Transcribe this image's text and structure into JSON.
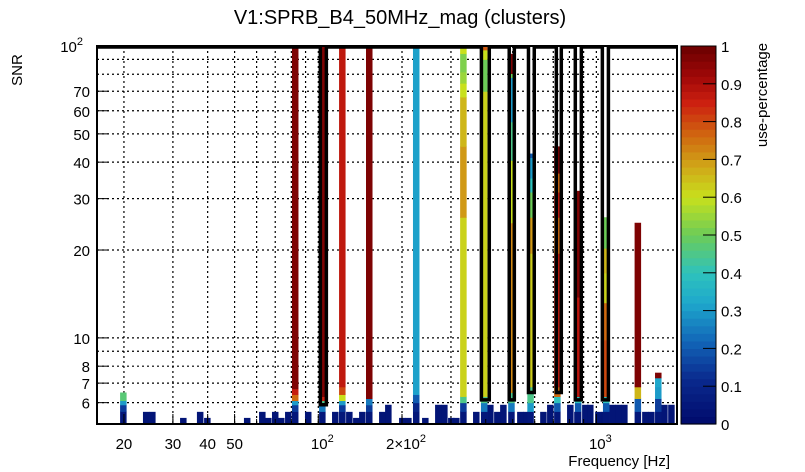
{
  "chart_data": {
    "type": "heatmap",
    "title": "V1:SPRB_B4_50MHz_mag (clusters)",
    "xlabel": "Frequency [Hz]",
    "ylabel": "SNR",
    "zlabel": "use-percentage",
    "xscale": "log",
    "yscale": "log",
    "xlim": [
      16.0,
      1950
    ],
    "ylim": [
      5.07,
      100
    ],
    "zlim": [
      0,
      1
    ],
    "grid": true,
    "bin_width_decades": 0.0234,
    "x_gridlines": [
      20,
      30,
      40,
      50,
      60,
      70,
      80,
      90,
      100,
      200,
      300,
      400,
      500,
      600,
      700,
      800,
      900,
      1000
    ],
    "y_gridlines": [
      6,
      7,
      8,
      9,
      10,
      20,
      30,
      40,
      50,
      60,
      70,
      80,
      90
    ],
    "x_ticks": [
      {
        "value": 20,
        "base": "20",
        "exp": ""
      },
      {
        "value": 30,
        "base": "30",
        "exp": ""
      },
      {
        "value": 40,
        "base": "40",
        "exp": ""
      },
      {
        "value": 50,
        "base": "50",
        "exp": ""
      },
      {
        "value": 100,
        "base": "10",
        "exp": "2"
      },
      {
        "value": 200,
        "base": "2×10",
        "exp": "2"
      },
      {
        "value": 1000,
        "base": "10",
        "exp": "3"
      }
    ],
    "y_ticks": [
      {
        "value": 100,
        "base": "10",
        "exp": "2"
      },
      {
        "value": 70,
        "base": "70",
        "exp": ""
      },
      {
        "value": 60,
        "base": "60",
        "exp": ""
      },
      {
        "value": 50,
        "base": "50",
        "exp": ""
      },
      {
        "value": 40,
        "base": "40",
        "exp": ""
      },
      {
        "value": 30,
        "base": "30",
        "exp": ""
      },
      {
        "value": 20,
        "base": "20",
        "exp": ""
      },
      {
        "value": 10,
        "base": "10",
        "exp": ""
      },
      {
        "value": 8,
        "base": "8",
        "exp": ""
      },
      {
        "value": 7,
        "base": "7",
        "exp": ""
      },
      {
        "value": 6,
        "base": "6",
        "exp": ""
      }
    ],
    "colorbar_ticks": [
      "0",
      "0.1",
      "0.2",
      "0.3",
      "0.4",
      "0.5",
      "0.6",
      "0.7",
      "0.8",
      "0.9",
      "1"
    ],
    "colormap": [
      [
        0.0,
        "#000a6b"
      ],
      [
        0.12,
        "#0a2a8e"
      ],
      [
        0.22,
        "#1266b8"
      ],
      [
        0.32,
        "#1ea8cc"
      ],
      [
        0.4,
        "#2ec2bc"
      ],
      [
        0.5,
        "#6ccc58"
      ],
      [
        0.6,
        "#c8e01c"
      ],
      [
        0.68,
        "#d0a818"
      ],
      [
        0.76,
        "#d06a10"
      ],
      [
        0.85,
        "#cc2010"
      ],
      [
        0.92,
        "#a00808"
      ],
      [
        1.0,
        "#6a0000"
      ]
    ],
    "columns": [
      {
        "f": 19.9,
        "segments": [
          [
            5.6,
            0.05
          ],
          [
            5.9,
            0.15
          ],
          [
            6.1,
            0.3
          ],
          [
            6.5,
            0.47
          ]
        ]
      },
      {
        "f": 82.6,
        "segments": [
          [
            5.6,
            0.05
          ],
          [
            5.9,
            0.15
          ],
          [
            6.1,
            0.3
          ],
          [
            6.4,
            0.76
          ],
          [
            6.7,
            0.86
          ],
          [
            100,
            0.97
          ]
        ]
      },
      {
        "f": 103.4,
        "segments": [
          [
            5.6,
            0.05
          ],
          [
            5.9,
            0.25
          ],
          [
            6.1,
            0.45
          ],
          [
            6.3,
            0.85
          ],
          [
            100,
            0.97
          ]
        ]
      },
      {
        "f": 122,
        "segments": [
          [
            5.6,
            0.05
          ],
          [
            5.9,
            0.15
          ],
          [
            6.1,
            0.3
          ],
          [
            6.4,
            0.6
          ],
          [
            6.8,
            0.8
          ],
          [
            100,
            0.87
          ]
        ]
      },
      {
        "f": 152.5,
        "segments": [
          [
            5.6,
            0.05
          ],
          [
            5.9,
            0.15
          ],
          [
            6.2,
            0.25
          ],
          [
            100,
            0.97
          ]
        ]
      },
      {
        "f": 225,
        "segments": [
          [
            5.6,
            0.05
          ],
          [
            6.0,
            0.1
          ],
          [
            6.4,
            0.2
          ],
          [
            100,
            0.31
          ]
        ]
      },
      {
        "f": 332.5,
        "segments": [
          [
            5.6,
            0.05
          ],
          [
            6.0,
            0.15
          ],
          [
            6.3,
            0.45
          ],
          [
            25.9,
            0.62
          ],
          [
            45.3,
            0.7
          ],
          [
            66.9,
            0.66
          ],
          [
            74.6,
            0.6
          ],
          [
            81.5,
            0.55
          ],
          [
            94.3,
            0.52
          ],
          [
            100,
            0.6
          ]
        ]
      },
      {
        "f": 395,
        "segments": [
          [
            5.6,
            0.05
          ],
          [
            6.0,
            0.25
          ],
          [
            6.3,
            0.45
          ],
          [
            70,
            0.62
          ],
          [
            90,
            0.5
          ],
          [
            97,
            0.6
          ],
          [
            100,
            0.78
          ]
        ]
      },
      {
        "f": 495,
        "segments": [
          [
            5.6,
            0.05
          ],
          [
            6.0,
            0.25
          ],
          [
            6.5,
            0.45
          ],
          [
            24.8,
            0.72
          ],
          [
            40.6,
            0.6
          ],
          [
            55,
            0.45
          ],
          [
            78,
            0.3
          ],
          [
            80.5,
            0.5
          ],
          [
            94,
            0.97
          ]
        ]
      },
      {
        "f": 580,
        "segments": [
          [
            5.6,
            0.05
          ],
          [
            6.0,
            0.3
          ],
          [
            6.8,
            0.45
          ],
          [
            19.5,
            0.63
          ],
          [
            25.9,
            0.7
          ],
          [
            31.6,
            0.5
          ],
          [
            35.3,
            0.4
          ],
          [
            41.5,
            0.3
          ],
          [
            42.8,
            0.2
          ]
        ]
      },
      {
        "f": 724,
        "segments": [
          [
            5.6,
            0.05
          ],
          [
            6.0,
            0.2
          ],
          [
            6.3,
            0.4
          ],
          [
            6.8,
            0.76
          ],
          [
            19.5,
            0.86
          ],
          [
            25.9,
            0.76
          ],
          [
            31.6,
            0.86
          ],
          [
            36.7,
            0.76
          ],
          [
            45.3,
            0.97
          ]
        ]
      },
      {
        "f": 860,
        "segments": [
          [
            5.6,
            0.05
          ],
          [
            6.0,
            0.2
          ],
          [
            6.3,
            0.4
          ],
          [
            13.8,
            0.88
          ],
          [
            31.9,
            0.97
          ]
        ]
      },
      {
        "f": 1085,
        "segments": [
          [
            5.6,
            0.05
          ],
          [
            6.0,
            0.2
          ],
          [
            6.3,
            0.4
          ],
          [
            9.85,
            0.8
          ],
          [
            13.2,
            0.76
          ],
          [
            16.7,
            0.62
          ],
          [
            20.3,
            0.66
          ],
          [
            25.9,
            0.5
          ]
        ]
      },
      {
        "f": 1410,
        "segments": [
          [
            5.6,
            0.05
          ],
          [
            6.2,
            0.2
          ],
          [
            6.8,
            0.66
          ],
          [
            24.8,
            0.97
          ]
        ]
      },
      {
        "f": 1670,
        "segments": [
          [
            5.6,
            0.05
          ],
          [
            6.2,
            0.15
          ],
          [
            6.8,
            0.3
          ],
          [
            7.3,
            0.32
          ],
          [
            7.6,
            0.97
          ]
        ]
      }
    ],
    "base_bins": [
      [
        24.05,
        5.58
      ],
      [
        25.3,
        5.58
      ],
      [
        32.7,
        5.32
      ],
      [
        37.6,
        5.58
      ],
      [
        39.9,
        5.32
      ],
      [
        55.5,
        5.32
      ],
      [
        62.9,
        5.58
      ],
      [
        66.1,
        5.32
      ],
      [
        70.0,
        5.58
      ],
      [
        73.6,
        5.32
      ],
      [
        78.0,
        5.58
      ],
      [
        92.0,
        5.58
      ],
      [
        115.1,
        5.58
      ],
      [
        122,
        5.9
      ],
      [
        129.3,
        5.58
      ],
      [
        137,
        5.32
      ],
      [
        144,
        5.58
      ],
      [
        169.9,
        5.58
      ],
      [
        178.6,
        5.9
      ],
      [
        200.5,
        5.32
      ],
      [
        210.8,
        5.32
      ],
      [
        242.6,
        5.32
      ],
      [
        270.2,
        5.9
      ],
      [
        284,
        5.9
      ],
      [
        300.9,
        5.32
      ],
      [
        313.6,
        5.32
      ],
      [
        370,
        5.58
      ],
      [
        415.6,
        5.9
      ],
      [
        440.5,
        5.58
      ],
      [
        463,
        5.9
      ],
      [
        533,
        5.58
      ],
      [
        560,
        5.58
      ],
      [
        645,
        5.58
      ],
      [
        683,
        5.9
      ],
      [
        806,
        5.9
      ],
      [
        855,
        5.58
      ],
      [
        913,
        5.9
      ],
      [
        951,
        5.9
      ],
      [
        1017,
        5.58
      ],
      [
        1069,
        5.58
      ],
      [
        1142,
        5.9
      ],
      [
        1200,
        5.9
      ],
      [
        1261,
        5.9
      ],
      [
        1501,
        5.58
      ],
      [
        1577,
        5.58
      ],
      [
        1757,
        5.9
      ],
      [
        1862,
        5.9
      ]
    ],
    "base_value": 0.04,
    "clusters": [
      {
        "f_range": [
          101.7,
          106.9
        ],
        "snr_min": 5.9
      },
      {
        "f_range": [
          386,
          412
        ],
        "snr_min": 6.13
      },
      {
        "f_range": [
          486,
          507
        ],
        "snr_min": 6.13
      },
      {
        "f_range": [
          570,
          598
        ],
        "snr_min": 6.5
      },
      {
        "f_range": [
          718,
          748
        ],
        "snr_min": 6.5
      },
      {
        "f_range": [
          840,
          883
        ],
        "snr_min": 6.13
      },
      {
        "f_range": [
          1051,
          1105
        ],
        "snr_min": 6.13
      }
    ]
  }
}
